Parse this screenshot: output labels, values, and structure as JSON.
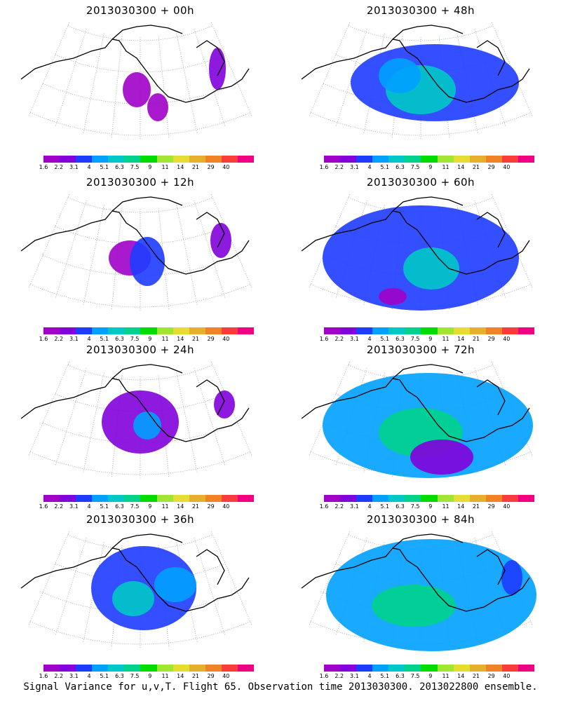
{
  "panels": [
    {
      "title": "2013030300 + 00h"
    },
    {
      "title": "2013030300 + 48h"
    },
    {
      "title": "2013030300 + 12h"
    },
    {
      "title": "2013030300 + 60h"
    },
    {
      "title": "2013030300 + 24h"
    },
    {
      "title": "2013030300 + 72h"
    },
    {
      "title": "2013030300 + 36h"
    },
    {
      "title": "2013030300 + 84h"
    }
  ],
  "colorbar": {
    "labels": [
      "1.6",
      "2.2",
      "3.1",
      "4",
      "5.1",
      "6.3",
      "7.5",
      "9",
      "11",
      "14",
      "21",
      "29",
      "40"
    ],
    "colors": [
      "#a000c8",
      "#8200dc",
      "#1e3cff",
      "#00a0ff",
      "#00c8c8",
      "#00d28c",
      "#00dc00",
      "#a0e632",
      "#e6dc32",
      "#e6af2d",
      "#f08228",
      "#fa3c3c",
      "#f00082"
    ]
  },
  "footer": "Signal Variance for u,v,T. Flight 65. Observation time 2013030300. 2013022800 ensemble."
}
